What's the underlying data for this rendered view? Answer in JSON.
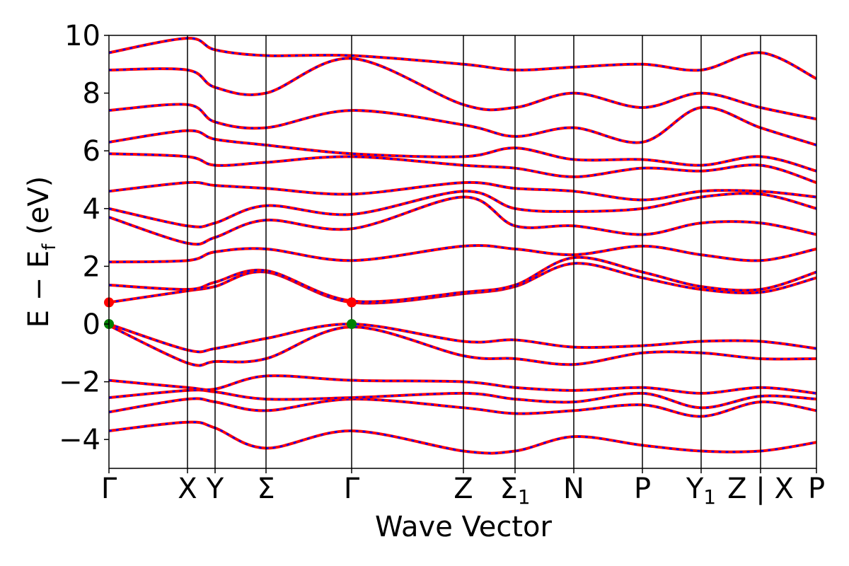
{
  "chart_data": {
    "type": "line",
    "xlabel": "Wave Vector",
    "ylabel_main": "E − E",
    "ylabel_sub": "f",
    "ylabel_unit": " (eV)",
    "ylim": [
      -5,
      10
    ],
    "y_ticks": [
      -4,
      -2,
      0,
      2,
      4,
      6,
      8,
      10
    ],
    "y_tick_labels": [
      "−4",
      "−2",
      "0",
      "2",
      "4",
      "6",
      "8",
      "10"
    ],
    "kpath": [
      {
        "label": "Γ",
        "sub": "",
        "pos": 0.0
      },
      {
        "label": "X",
        "sub": "",
        "pos": 0.111
      },
      {
        "label": "Y",
        "sub": "",
        "pos": 0.15
      },
      {
        "label": "Σ",
        "sub": "",
        "pos": 0.222
      },
      {
        "label": "Γ",
        "sub": "",
        "pos": 0.343
      },
      {
        "label": "Z",
        "sub": "",
        "pos": 0.501
      },
      {
        "label": "Σ",
        "sub": "1",
        "pos": 0.574
      },
      {
        "label": "N",
        "sub": "",
        "pos": 0.657
      },
      {
        "label": "P",
        "sub": "",
        "pos": 0.754
      },
      {
        "label": "Y",
        "sub": "1",
        "pos": 0.837
      },
      {
        "label": "Z | X",
        "sub": "",
        "pos": 0.921
      },
      {
        "label": "P",
        "sub": "",
        "pos": 1.0
      }
    ],
    "grid": false,
    "series_colors": {
      "solid": "#ff0000",
      "dashed": "#0000ff"
    },
    "special_points": [
      {
        "name": "VBM",
        "x": 0.0,
        "y": 0.0,
        "color": "#008000"
      },
      {
        "name": "VBM",
        "x": 0.343,
        "y": 0.0,
        "color": "#008000"
      },
      {
        "name": "CBM",
        "x": 0.0,
        "y": 0.75,
        "color": "#ff0000"
      },
      {
        "name": "CBM",
        "x": 0.343,
        "y": 0.75,
        "color": "#ff0000"
      }
    ],
    "bands": [
      {
        "x": [
          0.0,
          0.111,
          0.15,
          0.222,
          0.343,
          0.501,
          0.574,
          0.657,
          0.754,
          0.837,
          0.921,
          1.0
        ],
        "y": [
          -3.7,
          -3.4,
          -3.6,
          -4.3,
          -3.7,
          -4.4,
          -4.4,
          -3.9,
          -4.2,
          -4.4,
          -4.4,
          -4.1
        ]
      },
      {
        "x": [
          0.0,
          0.111,
          0.15,
          0.222,
          0.343,
          0.501,
          0.574,
          0.657,
          0.754,
          0.837,
          0.921,
          1.0
        ],
        "y": [
          -3.05,
          -2.6,
          -2.7,
          -3.0,
          -2.6,
          -2.9,
          -3.1,
          -3.0,
          -2.8,
          -3.2,
          -2.7,
          -3.0
        ]
      },
      {
        "x": [
          0.0,
          0.111,
          0.15,
          0.222,
          0.343,
          0.501,
          0.574,
          0.657,
          0.754,
          0.837,
          0.921,
          1.0
        ],
        "y": [
          -2.55,
          -2.3,
          -2.35,
          -2.6,
          -2.55,
          -2.4,
          -2.6,
          -2.7,
          -2.4,
          -2.9,
          -2.5,
          -2.6
        ]
      },
      {
        "x": [
          0.0,
          0.111,
          0.15,
          0.222,
          0.343,
          0.501,
          0.574,
          0.657,
          0.754,
          0.837,
          0.921,
          1.0
        ],
        "y": [
          -1.95,
          -2.2,
          -2.25,
          -1.8,
          -1.95,
          -2.0,
          -2.2,
          -2.3,
          -2.2,
          -2.4,
          -2.2,
          -2.4
        ]
      },
      {
        "x": [
          0.0,
          0.111,
          0.15,
          0.222,
          0.343,
          0.501,
          0.574,
          0.657,
          0.754,
          0.837,
          0.921,
          1.0
        ],
        "y": [
          0.0,
          -0.9,
          -0.85,
          -0.5,
          0.0,
          -0.6,
          -0.55,
          -0.8,
          -0.75,
          -0.6,
          -0.6,
          -0.85
        ]
      },
      {
        "x": [
          0.0,
          0.111,
          0.15,
          0.222,
          0.343,
          0.501,
          0.574,
          0.657,
          0.754,
          0.837,
          0.921,
          1.0
        ],
        "y": [
          -0.05,
          -1.35,
          -1.3,
          -1.2,
          -0.1,
          -1.1,
          -1.2,
          -1.4,
          -1.0,
          -1.0,
          -1.2,
          -1.2
        ]
      },
      {
        "x": [
          0.0,
          0.111,
          0.15,
          0.222,
          0.343,
          0.501,
          0.574,
          0.657,
          0.754,
          0.837,
          0.921,
          1.0
        ],
        "y": [
          0.75,
          1.15,
          1.3,
          1.8,
          0.75,
          1.05,
          1.3,
          2.1,
          1.6,
          1.2,
          1.1,
          1.6
        ]
      },
      {
        "x": [
          0.0,
          0.111,
          0.15,
          0.222,
          0.343,
          0.501,
          0.574,
          0.657,
          0.754,
          0.837,
          0.921,
          1.0
        ],
        "y": [
          1.35,
          1.2,
          1.45,
          1.85,
          0.8,
          1.1,
          1.35,
          2.3,
          1.8,
          1.3,
          1.2,
          1.8
        ]
      },
      {
        "x": [
          0.0,
          0.111,
          0.15,
          0.222,
          0.343,
          0.501,
          0.574,
          0.657,
          0.754,
          0.837,
          0.921,
          1.0
        ],
        "y": [
          2.15,
          2.2,
          2.5,
          2.6,
          2.2,
          2.7,
          2.6,
          2.4,
          2.7,
          2.4,
          2.2,
          2.6
        ]
      },
      {
        "x": [
          0.0,
          0.111,
          0.15,
          0.222,
          0.343,
          0.501,
          0.574,
          0.657,
          0.754,
          0.837,
          0.921,
          1.0
        ],
        "y": [
          3.7,
          2.8,
          3.0,
          3.6,
          3.3,
          4.4,
          3.4,
          3.4,
          3.1,
          3.5,
          3.5,
          3.1
        ]
      },
      {
        "x": [
          0.0,
          0.111,
          0.15,
          0.222,
          0.343,
          0.501,
          0.574,
          0.657,
          0.754,
          0.837,
          0.921,
          1.0
        ],
        "y": [
          4.0,
          3.4,
          3.5,
          4.1,
          3.8,
          4.6,
          4.0,
          3.9,
          4.0,
          4.4,
          4.5,
          4.0
        ]
      },
      {
        "x": [
          0.0,
          0.111,
          0.15,
          0.222,
          0.343,
          0.501,
          0.574,
          0.657,
          0.754,
          0.837,
          0.921,
          1.0
        ],
        "y": [
          4.6,
          4.9,
          4.8,
          4.7,
          4.5,
          4.9,
          4.7,
          4.6,
          4.3,
          4.6,
          4.6,
          4.4
        ]
      },
      {
        "x": [
          0.0,
          0.111,
          0.15,
          0.222,
          0.343,
          0.501,
          0.574,
          0.657,
          0.754,
          0.837,
          0.921,
          1.0
        ],
        "y": [
          5.9,
          5.8,
          5.5,
          5.6,
          5.8,
          5.5,
          5.4,
          5.1,
          5.4,
          5.3,
          5.5,
          4.9
        ]
      },
      {
        "x": [
          0.0,
          0.111,
          0.15,
          0.222,
          0.343,
          0.501,
          0.574,
          0.657,
          0.754,
          0.837,
          0.921,
          1.0
        ],
        "y": [
          6.3,
          6.7,
          6.4,
          6.2,
          5.9,
          5.8,
          6.1,
          5.7,
          5.7,
          5.5,
          5.8,
          5.3
        ]
      },
      {
        "x": [
          0.0,
          0.111,
          0.15,
          0.222,
          0.343,
          0.501,
          0.574,
          0.657,
          0.754,
          0.837,
          0.921,
          1.0
        ],
        "y": [
          7.4,
          7.6,
          7.0,
          6.8,
          7.4,
          6.9,
          6.5,
          6.8,
          6.3,
          7.5,
          6.8,
          6.2
        ]
      },
      {
        "x": [
          0.0,
          0.111,
          0.15,
          0.222,
          0.343,
          0.501,
          0.574,
          0.657,
          0.754,
          0.837,
          0.921,
          1.0
        ],
        "y": [
          8.8,
          8.8,
          8.2,
          8.0,
          9.2,
          7.6,
          7.5,
          8.0,
          7.5,
          8.0,
          7.5,
          7.1
        ]
      },
      {
        "x": [
          0.0,
          0.111,
          0.15,
          0.222,
          0.343,
          0.501,
          0.574,
          0.657,
          0.754,
          0.837,
          0.921,
          1.0
        ],
        "y": [
          9.4,
          9.9,
          9.5,
          9.3,
          9.3,
          9.0,
          8.8,
          8.9,
          9.0,
          8.8,
          9.4,
          8.5
        ]
      }
    ]
  }
}
